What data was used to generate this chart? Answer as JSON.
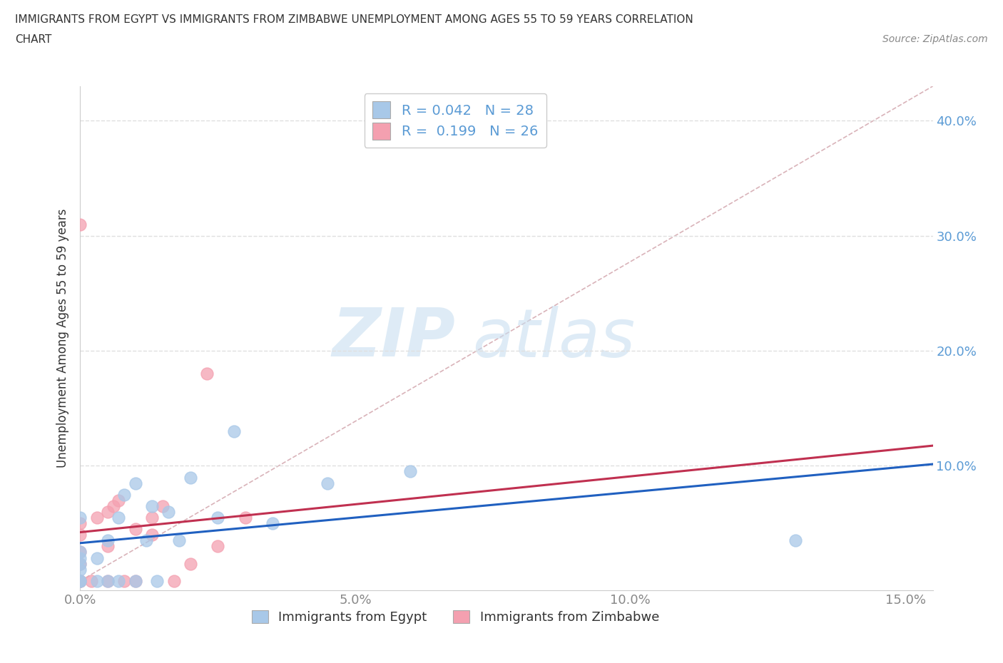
{
  "title_line1": "IMMIGRANTS FROM EGYPT VS IMMIGRANTS FROM ZIMBABWE UNEMPLOYMENT AMONG AGES 55 TO 59 YEARS CORRELATION",
  "title_line2": "CHART",
  "source": "Source: ZipAtlas.com",
  "ylabel": "Unemployment Among Ages 55 to 59 years",
  "xlim": [
    0.0,
    0.155
  ],
  "ylim": [
    -0.008,
    0.43
  ],
  "r_egypt": 0.042,
  "n_egypt": 28,
  "r_zimbabwe": 0.199,
  "n_zimbabwe": 26,
  "color_egypt": "#a8c8e8",
  "color_zimbabwe": "#f4a0b0",
  "line_color_egypt": "#2060c0",
  "line_color_zimbabwe": "#c03050",
  "diag_line_color": "#d0a0a8",
  "egypt_x": [
    0.0,
    0.0,
    0.0,
    0.0,
    0.0,
    0.0,
    0.0,
    0.003,
    0.003,
    0.005,
    0.005,
    0.007,
    0.007,
    0.008,
    0.01,
    0.01,
    0.012,
    0.013,
    0.014,
    0.016,
    0.018,
    0.02,
    0.025,
    0.028,
    0.035,
    0.045,
    0.06,
    0.13
  ],
  "egypt_y": [
    0.0,
    0.0,
    0.01,
    0.015,
    0.02,
    0.025,
    0.055,
    0.0,
    0.02,
    0.0,
    0.035,
    0.0,
    0.055,
    0.075,
    0.0,
    0.085,
    0.035,
    0.065,
    0.0,
    0.06,
    0.035,
    0.09,
    0.055,
    0.13,
    0.05,
    0.085,
    0.095,
    0.035
  ],
  "zimbabwe_x": [
    0.0,
    0.0,
    0.0,
    0.0,
    0.0,
    0.0,
    0.0,
    0.0,
    0.002,
    0.003,
    0.005,
    0.005,
    0.005,
    0.006,
    0.007,
    0.008,
    0.01,
    0.01,
    0.013,
    0.013,
    0.015,
    0.017,
    0.02,
    0.023,
    0.025,
    0.03
  ],
  "zimbabwe_y": [
    0.0,
    0.0,
    0.0,
    0.015,
    0.025,
    0.04,
    0.05,
    0.31,
    0.0,
    0.055,
    0.0,
    0.03,
    0.06,
    0.065,
    0.07,
    0.0,
    0.0,
    0.045,
    0.04,
    0.055,
    0.065,
    0.0,
    0.015,
    0.18,
    0.03,
    0.055
  ],
  "legend_label_egypt": "Immigrants from Egypt",
  "legend_label_zimbabwe": "Immigrants from Zimbabwe",
  "background_color": "#ffffff",
  "grid_color": "#e0e0e0",
  "text_color_blue": "#4472c4",
  "text_color_dark": "#333333",
  "tick_color": "#888888",
  "right_tick_color": "#5b9bd5"
}
